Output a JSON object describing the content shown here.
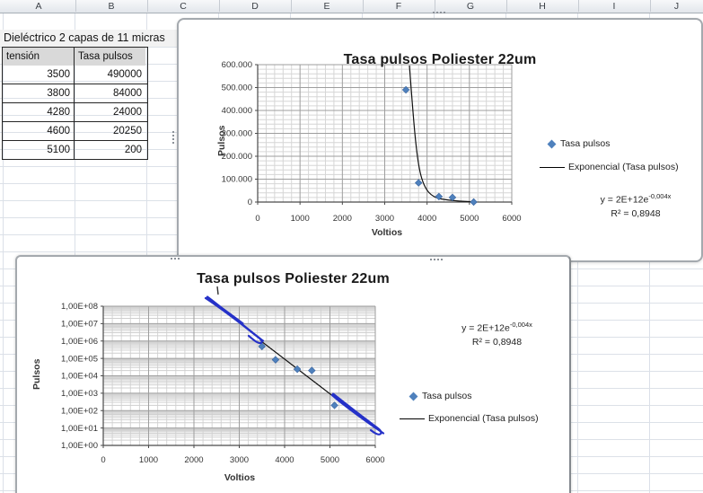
{
  "sheet": {
    "column_headers": [
      "A",
      "B",
      "C",
      "D",
      "E",
      "F",
      "G",
      "H",
      "I",
      "J"
    ],
    "note": "Dieléctrico 2 capas de 11 micras",
    "table": {
      "col1": "tensión",
      "col2": "Tasa pulsos",
      "rows": [
        [
          "3500",
          "490000"
        ],
        [
          "3800",
          "84000"
        ],
        [
          "4280",
          "24000"
        ],
        [
          "4600",
          "20250"
        ],
        [
          "5100",
          "200"
        ]
      ]
    }
  },
  "chart_common": {
    "title": "Tasa pulsos Poliester 22um",
    "xlabel": "Voltios",
    "ylabel": "Pulsos",
    "legend_series": "Tasa pulsos",
    "legend_trend": "Exponencial (Tasa pulsos)",
    "equation_base": "y = 2E+12e",
    "equation_exponent": "-0,004x",
    "r_squared": "R² = 0,8948"
  },
  "chart_data": [
    {
      "type": "scatter",
      "title": "Tasa pulsos Poliester 22um",
      "xlabel": "Voltios",
      "ylabel": "Pulsos",
      "series": [
        {
          "name": "Tasa pulsos",
          "x": [
            3500,
            3800,
            4280,
            4600,
            5100
          ],
          "y": [
            490000,
            84000,
            24000,
            20250,
            200
          ]
        }
      ],
      "trendline": {
        "type": "exponential",
        "label": "Exponencial (Tasa pulsos)",
        "equation": "y = 2E+12e^(-0,004x)",
        "r2": 0.8948
      },
      "y_scale": "linear",
      "xlim": [
        0,
        6000
      ],
      "ylim": [
        0,
        600000
      ],
      "x_ticks": [
        "0",
        "1000",
        "2000",
        "3000",
        "4000",
        "5000",
        "6000"
      ],
      "y_ticks": [
        "600.000",
        "500.000",
        "400.000",
        "300.000",
        "200.000",
        "100.000",
        "0"
      ],
      "grid": true,
      "legend_position": "right",
      "marker_color": "#4F81BD"
    },
    {
      "type": "scatter",
      "title": "Tasa pulsos Poliester 22um",
      "xlabel": "Voltios",
      "ylabel": "Pulsos",
      "series": [
        {
          "name": "Tasa pulsos",
          "x": [
            3500,
            3800,
            4280,
            4600,
            5100
          ],
          "y": [
            490000,
            84000,
            24000,
            20250,
            200
          ]
        }
      ],
      "trendline": {
        "type": "exponential",
        "label": "Exponencial (Tasa pulsos)",
        "equation": "y = 2E+12e^(-0,004x)",
        "r2": 0.8948
      },
      "y_scale": "log",
      "xlim": [
        0,
        6000
      ],
      "ylim": [
        1,
        100000000
      ],
      "x_ticks": [
        "0",
        "1000",
        "2000",
        "3000",
        "4000",
        "5000",
        "6000"
      ],
      "y_ticks": [
        "1,00E+08",
        "1,00E+07",
        "1,00E+06",
        "1,00E+05",
        "1,00E+04",
        "1,00E+03",
        "1,00E+02",
        "1,00E+01",
        "1,00E+00"
      ],
      "grid": true,
      "legend_position": "right",
      "marker_color": "#4F81BD",
      "annotation": "hand-drawn blue ink strokes extending the trendline"
    }
  ]
}
